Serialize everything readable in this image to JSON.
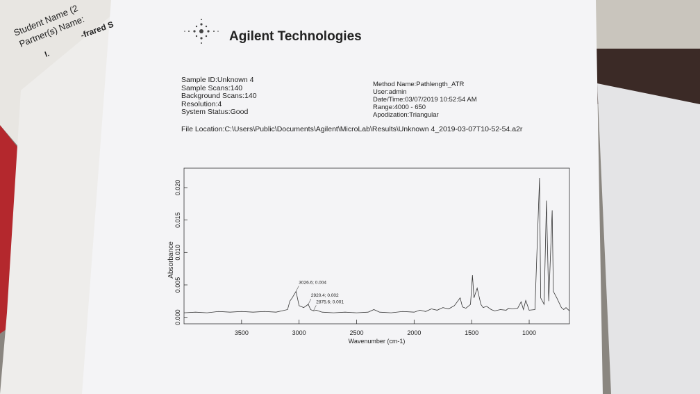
{
  "background_papers": [
    "Student Name (2",
    "Partner(s) Name:",
    "-frared S",
    "I."
  ],
  "header": {
    "company": "Agilent Technologies"
  },
  "sample_info": [
    "Sample ID:Unknown 4",
    "Sample Scans:140",
    "Background Scans:140",
    "Resolution:4",
    "System Status:Good"
  ],
  "method_info": [
    "Method Name:Pathlength_ATR",
    "User:admin",
    "Date/Time:03/07/2019 10:52:54 AM",
    "Range:4000 - 650",
    "Apodization:Triangular"
  ],
  "file_location": "File Location:C:\\Users\\Public\\Documents\\Agilent\\MicroLab\\Results\\Unknown 4_2019-03-07T10-52-54.a2r",
  "chart_data": {
    "type": "line",
    "xlabel": "Wavenumber (cm-1)",
    "ylabel": "Absorbance",
    "color": "#333333",
    "xlim": [
      4000,
      650
    ],
    "ylim": [
      -0.001,
      0.023
    ],
    "xticks": [
      3500,
      3000,
      2500,
      2000,
      1500,
      1000
    ],
    "yticks": [
      {
        "value": 0,
        "label": "0.000"
      },
      {
        "value": 0.005,
        "label": "0.005"
      },
      {
        "value": 0.01,
        "label": "0.010"
      },
      {
        "value": 0.015,
        "label": "0.015"
      },
      {
        "value": 0.02,
        "label": "0.020"
      }
    ],
    "x": [
      4000,
      3900,
      3800,
      3700,
      3600,
      3500,
      3400,
      3300,
      3200,
      3150,
      3100,
      3080,
      3060,
      3026.6,
      3000,
      2960,
      2920.4,
      2900,
      2875.6,
      2850,
      2800,
      2700,
      2600,
      2500,
      2400,
      2350,
      2300,
      2200,
      2100,
      2000,
      1950,
      1900,
      1850,
      1800,
      1750,
      1700,
      1650,
      1600,
      1580,
      1550,
      1510,
      1493,
      1480,
      1452,
      1420,
      1400,
      1370,
      1330,
      1300,
      1250,
      1200,
      1180,
      1150,
      1100,
      1070,
      1050,
      1030,
      1000,
      950,
      910,
      900,
      870,
      850,
      830,
      800,
      790,
      760,
      720,
      700,
      680,
      650
    ],
    "values": [
      0.0007,
      0.0008,
      0.0007,
      0.0009,
      0.0008,
      0.0009,
      0.0008,
      0.0009,
      0.0008,
      0.001,
      0.0012,
      0.0025,
      0.003,
      0.004,
      0.0018,
      0.0015,
      0.002,
      0.0012,
      0.001,
      0.0011,
      0.0008,
      0.0007,
      0.0008,
      0.0007,
      0.0008,
      0.0012,
      0.0008,
      0.0007,
      0.0009,
      0.0008,
      0.0011,
      0.0009,
      0.0013,
      0.0011,
      0.0015,
      0.0013,
      0.0018,
      0.003,
      0.0016,
      0.0014,
      0.002,
      0.0065,
      0.003,
      0.0045,
      0.002,
      0.0015,
      0.0017,
      0.0012,
      0.001,
      0.0012,
      0.0011,
      0.0014,
      0.0013,
      0.0014,
      0.0024,
      0.0012,
      0.0026,
      0.0011,
      0.0012,
      0.0215,
      0.003,
      0.002,
      0.018,
      0.0025,
      0.0165,
      0.004,
      0.003,
      0.0015,
      0.0012,
      0.0015,
      0.001
    ],
    "annotations": [
      {
        "label": "3026.6; 0.004",
        "x": 3026.6,
        "y": 0.004
      },
      {
        "label": "2920.4; 0.002",
        "x": 2920.4,
        "y": 0.002
      },
      {
        "label": "2875.6; 0.001",
        "x": 2875.6,
        "y": 0.001
      }
    ]
  }
}
